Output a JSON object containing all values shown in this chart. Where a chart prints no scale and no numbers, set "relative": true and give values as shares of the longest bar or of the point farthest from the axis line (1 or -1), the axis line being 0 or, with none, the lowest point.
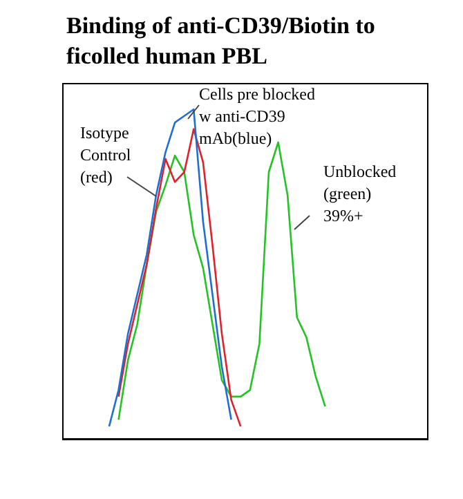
{
  "chart_data": {
    "type": "line",
    "title": "Binding of anti-CD39/Biotin to ficolled human PBL",
    "relative": true,
    "tick_labels": false,
    "legend": false,
    "marker": "none",
    "categories": [
      null,
      null,
      null,
      null,
      null,
      null,
      null,
      null,
      null,
      null,
      null,
      null,
      null,
      null,
      null,
      null,
      null,
      null,
      null,
      null,
      null,
      null,
      null,
      null,
      null,
      null,
      null,
      null,
      null,
      null,
      null,
      null,
      null,
      null,
      null,
      null,
      null,
      null,
      null,
      null
    ],
    "series": [
      {
        "color": "#22c322",
        "values": [
          null,
          null,
          null,
          null,
          null,
          null,
          0.06,
          0.24,
          0.35,
          0.53,
          0.69,
          0.77,
          0.86,
          0.81,
          0.62,
          0.52,
          0.35,
          0.18,
          0.13,
          0.13,
          0.15,
          0.29,
          0.81,
          0.9,
          0.74,
          0.37,
          0.31,
          0.19,
          0.1,
          null,
          null,
          null,
          null,
          null,
          null,
          null,
          null,
          null,
          null,
          null
        ]
      },
      {
        "color": "#e0202a",
        "values": [
          null,
          null,
          null,
          null,
          null,
          null,
          0.13,
          0.29,
          0.41,
          0.53,
          0.7,
          0.85,
          0.78,
          0.81,
          0.94,
          0.84,
          0.59,
          0.32,
          0.12,
          0.04,
          null,
          null,
          null,
          null,
          null,
          null,
          null,
          null,
          null,
          null,
          null,
          null,
          null,
          null,
          null,
          null,
          null,
          null,
          null,
          null
        ]
      },
      {
        "color": "#1f6fd0",
        "values": [
          null,
          null,
          null,
          null,
          null,
          0.04,
          0.15,
          0.32,
          0.44,
          0.56,
          0.74,
          0.87,
          0.96,
          0.98,
          1,
          0.66,
          0.44,
          0.22,
          0.06,
          null,
          null,
          null,
          null,
          null,
          null,
          null,
          null,
          null,
          null,
          null,
          null,
          null,
          null,
          null,
          null,
          null,
          null,
          null,
          null,
          null
        ]
      }
    ],
    "annotations": [
      "Isotype Control (red)",
      "Cells pre blocked w anti-CD39 mAb(blue)",
      "Unblocked (green) 39%+"
    ]
  }
}
